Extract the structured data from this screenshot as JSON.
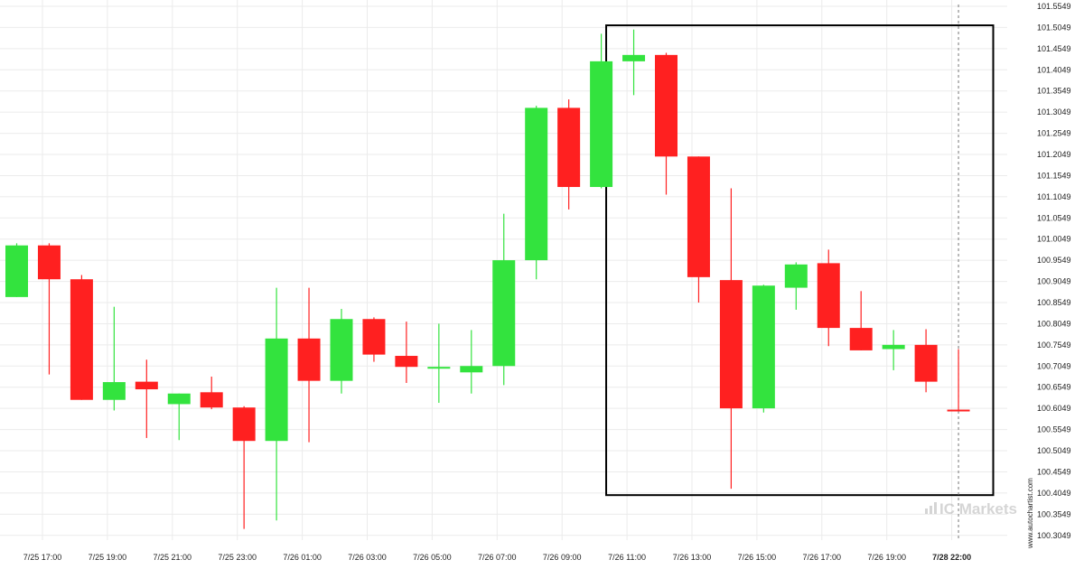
{
  "chart_data": {
    "type": "candlestick",
    "title": "",
    "xlabel": "",
    "ylabel": "",
    "ylim": [
      100.27,
      101.56
    ],
    "grid": true,
    "y_ticks": [
      "101.5549",
      "101.5049",
      "101.4549",
      "101.4049",
      "101.3549",
      "101.3049",
      "101.2549",
      "101.2049",
      "101.1549",
      "101.1049",
      "101.0549",
      "101.0049",
      "100.9549",
      "100.9049",
      "100.8549",
      "100.8049",
      "100.7549",
      "100.7049",
      "100.6549",
      "100.6049",
      "100.5549",
      "100.5049",
      "100.4549",
      "100.4049",
      "100.3549",
      "100.3049"
    ],
    "x_ticks": [
      "7/25 17:00",
      "7/25 19:00",
      "7/25 21:00",
      "7/25 23:00",
      "7/26 01:00",
      "7/26 03:00",
      "7/26 05:00",
      "7/26 07:00",
      "7/26 09:00",
      "7/26 11:00",
      "7/26 13:00",
      "7/26 15:00",
      "7/26 17:00",
      "7/26 19:00",
      "7/28 22:00"
    ],
    "candles": [
      {
        "open": 100.868,
        "high": 100.995,
        "low": 100.868,
        "close": 100.99
      },
      {
        "open": 100.99,
        "high": 100.995,
        "low": 100.685,
        "close": 100.91
      },
      {
        "open": 100.91,
        "high": 100.92,
        "low": 100.625,
        "close": 100.625
      },
      {
        "open": 100.625,
        "high": 100.845,
        "low": 100.6,
        "close": 100.667
      },
      {
        "open": 100.668,
        "high": 100.72,
        "low": 100.535,
        "close": 100.65
      },
      {
        "open": 100.615,
        "high": 100.64,
        "low": 100.53,
        "close": 100.64
      },
      {
        "open": 100.643,
        "high": 100.68,
        "low": 100.603,
        "close": 100.607
      },
      {
        "open": 100.607,
        "high": 100.61,
        "low": 100.32,
        "close": 100.528
      },
      {
        "open": 100.528,
        "high": 100.89,
        "low": 100.34,
        "close": 100.77
      },
      {
        "open": 100.77,
        "high": 100.89,
        "low": 100.525,
        "close": 100.67
      },
      {
        "open": 100.67,
        "high": 100.84,
        "low": 100.64,
        "close": 100.816
      },
      {
        "open": 100.816,
        "high": 100.82,
        "low": 100.715,
        "close": 100.732
      },
      {
        "open": 100.729,
        "high": 100.81,
        "low": 100.665,
        "close": 100.703
      },
      {
        "open": 100.703,
        "high": 100.805,
        "low": 100.618,
        "close": 100.703
      },
      {
        "open": 100.69,
        "high": 100.79,
        "low": 100.64,
        "close": 100.705
      },
      {
        "open": 100.705,
        "high": 101.065,
        "low": 100.66,
        "close": 100.955
      },
      {
        "open": 100.955,
        "high": 101.32,
        "low": 100.91,
        "close": 101.315
      },
      {
        "open": 101.315,
        "high": 101.335,
        "low": 101.075,
        "close": 101.128
      },
      {
        "open": 101.128,
        "high": 101.49,
        "low": 101.125,
        "close": 101.425
      },
      {
        "open": 101.425,
        "high": 101.5,
        "low": 101.345,
        "close": 101.44
      },
      {
        "open": 101.44,
        "high": 101.445,
        "low": 101.11,
        "close": 101.2
      },
      {
        "open": 101.2,
        "high": 101.2,
        "low": 100.855,
        "close": 100.915
      },
      {
        "open": 100.908,
        "high": 101.125,
        "low": 100.415,
        "close": 100.605
      },
      {
        "open": 100.605,
        "high": 100.897,
        "low": 100.595,
        "close": 100.895
      },
      {
        "open": 100.89,
        "high": 100.95,
        "low": 100.838,
        "close": 100.945
      },
      {
        "open": 100.948,
        "high": 100.98,
        "low": 100.752,
        "close": 100.795
      },
      {
        "open": 100.795,
        "high": 100.882,
        "low": 100.742,
        "close": 100.742
      },
      {
        "open": 100.745,
        "high": 100.79,
        "low": 100.695,
        "close": 100.755
      },
      {
        "open": 100.755,
        "high": 100.792,
        "low": 100.643,
        "close": 100.668
      },
      {
        "open": 100.602,
        "high": 100.745,
        "low": 100.6,
        "close": 100.6
      }
    ],
    "colors": {
      "up": "#33e33e",
      "down": "#ff2020",
      "grid": "#ebebeb",
      "box": "#000000"
    },
    "highlight_box": {
      "from_candle": 19,
      "to_candle": 30,
      "price_high": 101.51,
      "price_low": 100.4
    }
  },
  "watermark": {
    "brand": "IC Markets",
    "site": "www.autochartist.com"
  }
}
